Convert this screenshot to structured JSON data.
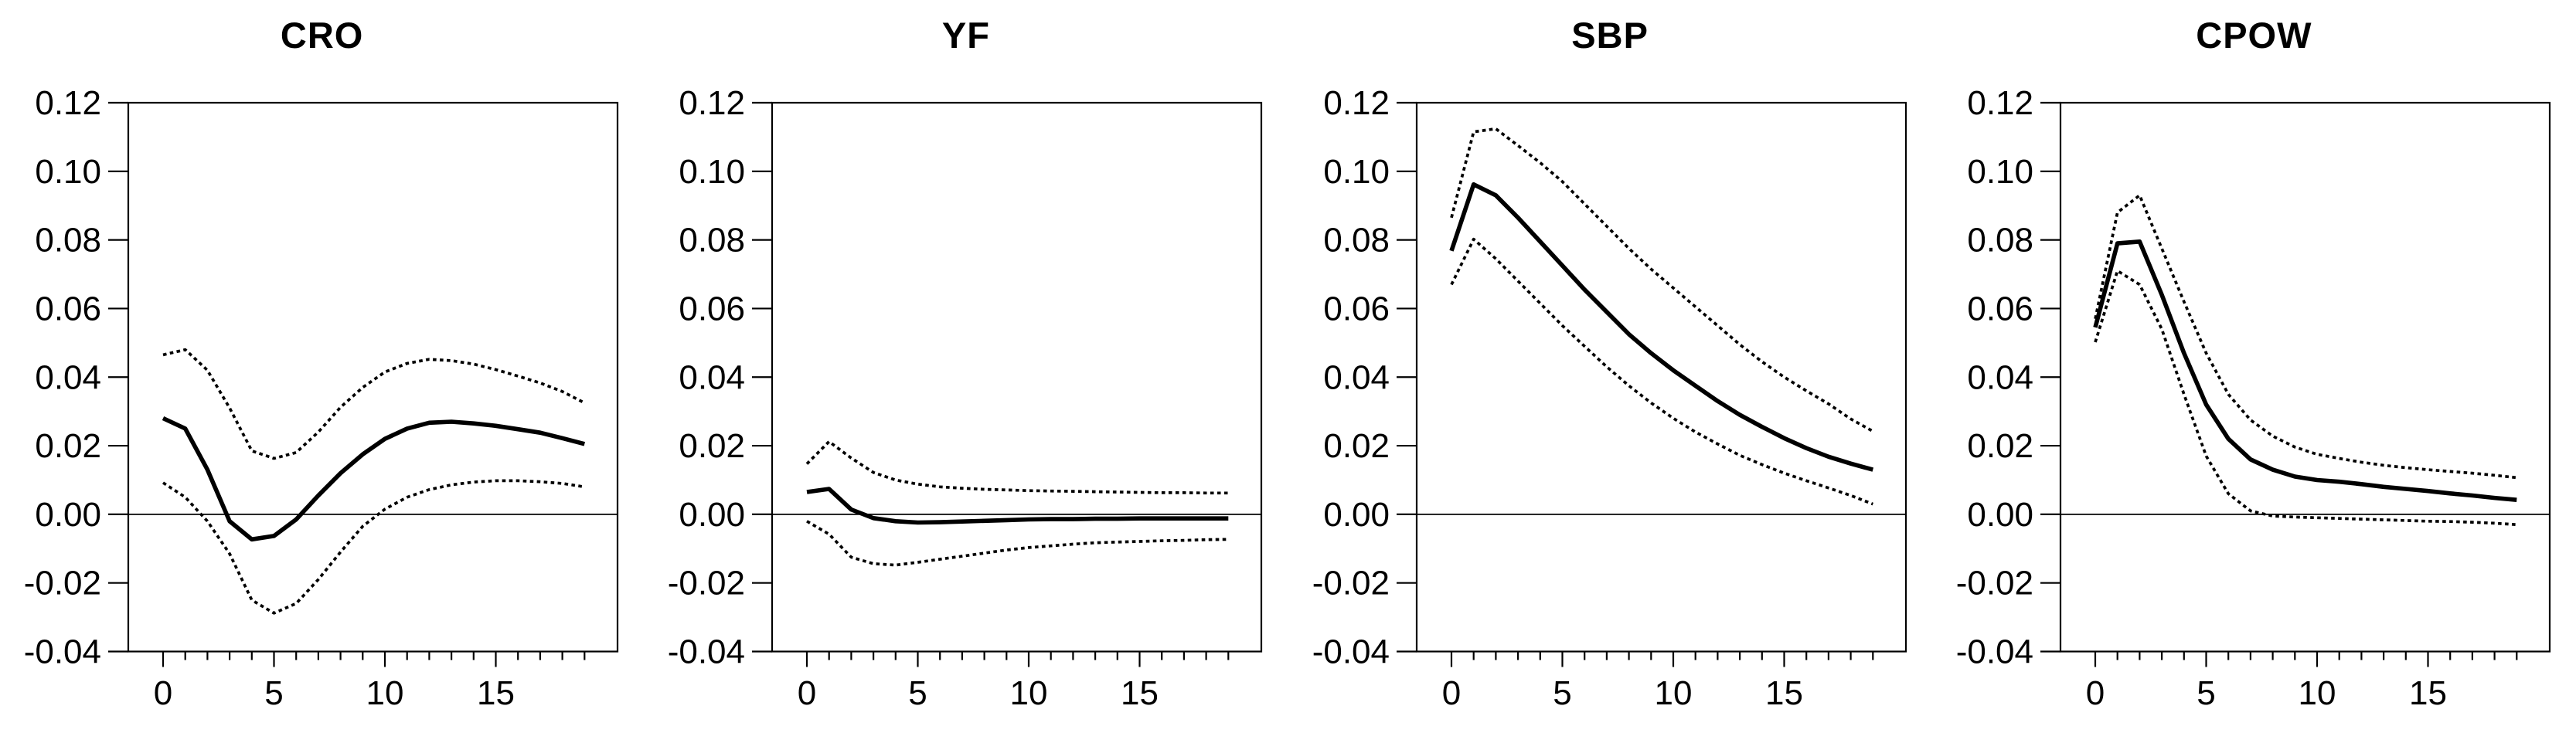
{
  "figure": {
    "background_color": "#ffffff",
    "line_color": "#000000",
    "description": "Four impulse-response panels with solid point estimate and dotted confidence bands"
  },
  "chart_data": [
    {
      "type": "line",
      "title": "CRO",
      "x": [
        0,
        1,
        2,
        3,
        4,
        5,
        6,
        7,
        8,
        9,
        10,
        11,
        12,
        13,
        14,
        15,
        16,
        17,
        18,
        19
      ],
      "series": [
        {
          "name": "response",
          "style": "solid",
          "values": [
            0.028,
            0.025,
            0.013,
            -0.002,
            -0.0073,
            -0.0063,
            -0.0015,
            0.0055,
            0.012,
            0.0175,
            0.022,
            0.025,
            0.0267,
            0.027,
            0.0265,
            0.0258,
            0.0248,
            0.0238,
            0.0222,
            0.0205
          ]
        },
        {
          "name": "upper_band",
          "style": "dashed",
          "values": [
            0.0465,
            0.048,
            0.042,
            0.031,
            0.0185,
            0.0163,
            0.018,
            0.024,
            0.0312,
            0.037,
            0.0415,
            0.044,
            0.0452,
            0.0448,
            0.0438,
            0.0422,
            0.0403,
            0.0383,
            0.0358,
            0.0325
          ]
        },
        {
          "name": "lower_band",
          "style": "dashed",
          "values": [
            0.0092,
            0.005,
            -0.002,
            -0.0115,
            -0.025,
            -0.0288,
            -0.026,
            -0.019,
            -0.011,
            -0.0035,
            0.0015,
            0.005,
            0.0072,
            0.0086,
            0.0094,
            0.0098,
            0.0098,
            0.0095,
            0.009,
            0.008
          ]
        }
      ],
      "ylim": [
        -0.04,
        0.12
      ],
      "yticks": [
        {
          "value": 0.12,
          "label": "0.12"
        },
        {
          "value": 0.1,
          "label": "0.10"
        },
        {
          "value": 0.08,
          "label": "0.08"
        },
        {
          "value": 0.06,
          "label": "0.06"
        },
        {
          "value": 0.04,
          "label": "0.04"
        },
        {
          "value": 0.02,
          "label": "0.02"
        },
        {
          "value": 0.0,
          "label": "0.00"
        },
        {
          "value": -0.02,
          "label": "-0.02"
        },
        {
          "value": -0.04,
          "label": "-0.04"
        }
      ],
      "xticks_major": [
        {
          "value": 0,
          "label": "0"
        },
        {
          "value": 5,
          "label": "5"
        },
        {
          "value": 10,
          "label": "10"
        },
        {
          "value": 15,
          "label": "15"
        }
      ],
      "xticks_minor_every": 1,
      "zero_line": true,
      "grid": false,
      "legend": "none"
    },
    {
      "type": "line",
      "title": "YF",
      "x": [
        0,
        1,
        2,
        3,
        4,
        5,
        6,
        7,
        8,
        9,
        10,
        11,
        12,
        13,
        14,
        15,
        16,
        17,
        18,
        19
      ],
      "series": [
        {
          "name": "response",
          "style": "solid",
          "values": [
            0.0065,
            0.0074,
            0.0014,
            -0.0011,
            -0.002,
            -0.0024,
            -0.0023,
            -0.0021,
            -0.0019,
            -0.0017,
            -0.0015,
            -0.0014,
            -0.0014,
            -0.0013,
            -0.0013,
            -0.0012,
            -0.0012,
            -0.0012,
            -0.0012,
            -0.0012
          ]
        },
        {
          "name": "upper_band",
          "style": "dashed",
          "values": [
            0.0147,
            0.0212,
            0.0164,
            0.0122,
            0.01,
            0.0088,
            0.008,
            0.0076,
            0.0073,
            0.0071,
            0.0069,
            0.0068,
            0.0067,
            0.0066,
            0.0065,
            0.0064,
            0.0063,
            0.0063,
            0.0062,
            0.0062
          ]
        },
        {
          "name": "lower_band",
          "style": "dashed",
          "values": [
            -0.002,
            -0.0058,
            -0.0125,
            -0.0144,
            -0.0148,
            -0.014,
            -0.0131,
            -0.0122,
            -0.0113,
            -0.0104,
            -0.0097,
            -0.0092,
            -0.0087,
            -0.0083,
            -0.0081,
            -0.0079,
            -0.0077,
            -0.0076,
            -0.0074,
            -0.0073
          ]
        }
      ],
      "ylim": [
        -0.04,
        0.12
      ],
      "yticks": [
        {
          "value": 0.12,
          "label": "0.12"
        },
        {
          "value": 0.1,
          "label": "0.10"
        },
        {
          "value": 0.08,
          "label": "0.08"
        },
        {
          "value": 0.06,
          "label": "0.06"
        },
        {
          "value": 0.04,
          "label": "0.04"
        },
        {
          "value": 0.02,
          "label": "0.02"
        },
        {
          "value": 0.0,
          "label": "0.00"
        },
        {
          "value": -0.02,
          "label": "-0.02"
        },
        {
          "value": -0.04,
          "label": "-0.04"
        }
      ],
      "xticks_major": [
        {
          "value": 0,
          "label": "0"
        },
        {
          "value": 5,
          "label": "5"
        },
        {
          "value": 10,
          "label": "10"
        },
        {
          "value": 15,
          "label": "15"
        }
      ],
      "xticks_minor_every": 1,
      "zero_line": true,
      "grid": false,
      "legend": "none"
    },
    {
      "type": "line",
      "title": "SBP",
      "x": [
        0,
        1,
        2,
        3,
        4,
        5,
        6,
        7,
        8,
        9,
        10,
        11,
        12,
        13,
        14,
        15,
        16,
        17,
        18,
        19
      ],
      "series": [
        {
          "name": "response",
          "style": "solid",
          "values": [
            0.0768,
            0.0962,
            0.093,
            0.0865,
            0.0795,
            0.0725,
            0.0655,
            0.059,
            0.0525,
            0.047,
            0.042,
            0.0375,
            0.033,
            0.029,
            0.0255,
            0.0222,
            0.0193,
            0.0168,
            0.0148,
            0.013
          ]
        },
        {
          "name": "upper_band",
          "style": "dashed",
          "values": [
            0.0865,
            0.1115,
            0.1124,
            0.1075,
            0.1025,
            0.097,
            0.0905,
            0.084,
            0.0775,
            0.0715,
            0.066,
            0.0605,
            0.055,
            0.0495,
            0.0445,
            0.04,
            0.036,
            0.0322,
            0.0278,
            0.0242
          ]
        },
        {
          "name": "lower_band",
          "style": "dashed",
          "values": [
            0.067,
            0.0802,
            0.0745,
            0.068,
            0.0615,
            0.055,
            0.049,
            0.043,
            0.0375,
            0.0325,
            0.028,
            0.024,
            0.0205,
            0.0172,
            0.0145,
            0.012,
            0.0098,
            0.0077,
            0.0055,
            0.003
          ]
        }
      ],
      "ylim": [
        -0.04,
        0.12
      ],
      "yticks": [
        {
          "value": 0.12,
          "label": "0.12"
        },
        {
          "value": 0.1,
          "label": "0.10"
        },
        {
          "value": 0.08,
          "label": "0.08"
        },
        {
          "value": 0.06,
          "label": "0.06"
        },
        {
          "value": 0.04,
          "label": "0.04"
        },
        {
          "value": 0.02,
          "label": "0.02"
        },
        {
          "value": 0.0,
          "label": "0.00"
        },
        {
          "value": -0.02,
          "label": "-0.02"
        },
        {
          "value": -0.04,
          "label": "-0.04"
        }
      ],
      "xticks_major": [
        {
          "value": 0,
          "label": "0"
        },
        {
          "value": 5,
          "label": "5"
        },
        {
          "value": 10,
          "label": "10"
        },
        {
          "value": 15,
          "label": "15"
        }
      ],
      "xticks_minor_every": 1,
      "zero_line": true,
      "grid": false,
      "legend": "none"
    },
    {
      "type": "line",
      "title": "CPOW",
      "x": [
        0,
        1,
        2,
        3,
        4,
        5,
        6,
        7,
        8,
        9,
        10,
        11,
        12,
        13,
        14,
        15,
        16,
        17,
        18,
        19
      ],
      "series": [
        {
          "name": "response",
          "style": "solid",
          "values": [
            0.0545,
            0.079,
            0.0795,
            0.064,
            0.047,
            0.032,
            0.022,
            0.016,
            0.013,
            0.011,
            0.01,
            0.0095,
            0.0088,
            0.008,
            0.0074,
            0.0068,
            0.0061,
            0.0055,
            0.0048,
            0.0042
          ]
        },
        {
          "name": "upper_band",
          "style": "dashed",
          "values": [
            0.057,
            0.088,
            0.093,
            0.0775,
            0.062,
            0.047,
            0.035,
            0.0275,
            0.0228,
            0.0196,
            0.0175,
            0.0163,
            0.0152,
            0.0143,
            0.0136,
            0.013,
            0.0125,
            0.012,
            0.0114,
            0.0107
          ]
        },
        {
          "name": "lower_band",
          "style": "dashed",
          "values": [
            0.0502,
            0.071,
            0.067,
            0.054,
            0.035,
            0.017,
            0.006,
            0.001,
            -0.0005,
            -0.0008,
            -0.001,
            -0.0012,
            -0.0014,
            -0.0016,
            -0.0018,
            -0.002,
            -0.0021,
            -0.0023,
            -0.0026,
            -0.003
          ]
        }
      ],
      "ylim": [
        -0.04,
        0.12
      ],
      "yticks": [
        {
          "value": 0.12,
          "label": "0.12"
        },
        {
          "value": 0.1,
          "label": "0.10"
        },
        {
          "value": 0.08,
          "label": "0.08"
        },
        {
          "value": 0.06,
          "label": "0.06"
        },
        {
          "value": 0.04,
          "label": "0.04"
        },
        {
          "value": 0.02,
          "label": "0.02"
        },
        {
          "value": 0.0,
          "label": "0.00"
        },
        {
          "value": -0.02,
          "label": "-0.02"
        },
        {
          "value": -0.04,
          "label": "-0.04"
        }
      ],
      "xticks_major": [
        {
          "value": 0,
          "label": "0"
        },
        {
          "value": 5,
          "label": "5"
        },
        {
          "value": 10,
          "label": "10"
        },
        {
          "value": 15,
          "label": "15"
        }
      ],
      "xticks_minor_every": 1,
      "zero_line": true,
      "grid": false,
      "legend": "none"
    }
  ]
}
